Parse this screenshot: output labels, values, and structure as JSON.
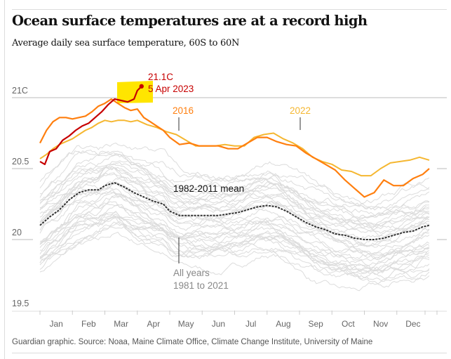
{
  "header": {
    "title": "Ocean surface temperatures are at a record high",
    "subtitle": "Average daily sea surface temperature, 60S to 60N"
  },
  "footer": {
    "source": "Guardian graphic. Source: Noaa, Maine Climate Office, Climate Change Institute, University of Maine"
  },
  "colors": {
    "y2023": "#c70000",
    "y2016": "#ff7f0f",
    "y2022": "#f5b731",
    "all_years": "#dcdcdc",
    "mean": "#333333",
    "highlight": "#ffe500",
    "grid": "#bbbbbb",
    "axis_text": "#666666"
  },
  "chart_data": {
    "type": "line",
    "title": "Ocean surface temperatures are at a record high",
    "subtitle": "Average daily sea surface temperature, 60S to 60N",
    "xlabel": "",
    "ylabel": "",
    "ylim": [
      19.5,
      21.2
    ],
    "yticks": [
      {
        "value": 21,
        "label": "21C"
      },
      {
        "value": 20.5,
        "label": "20.5"
      },
      {
        "value": 20,
        "label": "20"
      },
      {
        "value": 19.5,
        "label": "19.5"
      }
    ],
    "x_unit": "month (1 = Jan 1, 13 = Dec 31)",
    "xlim": [
      1,
      13
    ],
    "categories": [
      "Jan",
      "Feb",
      "Mar",
      "Apr",
      "May",
      "Jun",
      "Jul",
      "Aug",
      "Sep",
      "Oct",
      "Nov",
      "Dec"
    ],
    "grid": "horizontal at labelled ticks",
    "legend": "inline labels",
    "series": [
      {
        "name": "2023",
        "style": "highlight",
        "x": [
          1,
          1.15,
          1.3,
          1.5,
          1.7,
          1.9,
          2.1,
          2.3,
          2.5,
          2.7,
          2.9,
          3.1,
          3.3,
          3.5,
          3.7,
          3.9,
          4.0,
          4.13
        ],
        "values": [
          20.55,
          20.53,
          20.62,
          20.64,
          20.7,
          20.73,
          20.77,
          20.8,
          20.82,
          20.86,
          20.9,
          20.95,
          20.99,
          20.98,
          20.97,
          20.99,
          21.05,
          21.08
        ]
      },
      {
        "name": "2016",
        "style": "accent",
        "x": [
          1,
          1.2,
          1.4,
          1.6,
          1.8,
          2.0,
          2.2,
          2.4,
          2.6,
          2.8,
          3.0,
          3.2,
          3.4,
          3.6,
          3.8,
          4.0,
          4.2,
          4.4,
          4.6,
          4.8,
          5.0,
          5.3,
          5.6,
          5.9,
          6.2,
          6.5,
          6.8,
          7.1,
          7.4,
          7.7,
          8.0,
          8.3,
          8.6,
          8.9,
          9.2,
          9.5,
          9.8,
          10.1,
          10.4,
          10.7,
          11.0,
          11.3,
          11.6,
          11.9,
          12.2,
          12.5,
          12.8,
          13.0
        ],
        "values": [
          20.68,
          20.77,
          20.83,
          20.86,
          20.86,
          20.85,
          20.86,
          20.87,
          20.9,
          20.94,
          20.96,
          20.99,
          20.96,
          20.93,
          20.91,
          20.92,
          20.86,
          20.83,
          20.8,
          20.77,
          20.72,
          20.67,
          20.68,
          20.66,
          20.66,
          20.66,
          20.64,
          20.64,
          20.68,
          20.72,
          20.72,
          20.69,
          20.67,
          20.66,
          20.61,
          20.57,
          20.53,
          20.49,
          20.42,
          20.36,
          20.3,
          20.33,
          20.42,
          20.38,
          20.38,
          20.43,
          20.46,
          20.5
        ]
      },
      {
        "name": "2022",
        "style": "light-accent",
        "x": [
          1,
          1.2,
          1.4,
          1.6,
          1.8,
          2.0,
          2.2,
          2.4,
          2.6,
          2.8,
          3.0,
          3.2,
          3.4,
          3.6,
          3.8,
          4.0,
          4.3,
          4.6,
          4.9,
          5.2,
          5.5,
          5.8,
          6.1,
          6.4,
          6.7,
          7.0,
          7.3,
          7.6,
          7.9,
          8.2,
          8.5,
          8.8,
          9.1,
          9.4,
          9.7,
          10.0,
          10.3,
          10.6,
          10.9,
          11.2,
          11.5,
          11.8,
          12.1,
          12.4,
          12.7,
          13.0
        ],
        "values": [
          20.57,
          20.6,
          20.64,
          20.67,
          20.69,
          20.71,
          20.74,
          20.77,
          20.79,
          20.82,
          20.84,
          20.83,
          20.84,
          20.84,
          20.83,
          20.84,
          20.81,
          20.79,
          20.76,
          20.74,
          20.7,
          20.66,
          20.66,
          20.66,
          20.67,
          20.66,
          20.66,
          20.72,
          20.74,
          20.75,
          20.71,
          20.68,
          20.64,
          20.58,
          20.55,
          20.53,
          20.49,
          20.48,
          20.45,
          20.45,
          20.5,
          20.54,
          20.55,
          20.56,
          20.58,
          20.56
        ]
      },
      {
        "name": "1982-2011 mean",
        "style": "dashed",
        "x": [
          1,
          1.3,
          1.6,
          1.9,
          2.2,
          2.5,
          2.8,
          3.0,
          3.3,
          3.6,
          3.9,
          4.2,
          4.5,
          4.8,
          5.0,
          5.3,
          5.6,
          5.9,
          6.2,
          6.5,
          6.8,
          7.1,
          7.4,
          7.7,
          8.0,
          8.3,
          8.6,
          8.9,
          9.2,
          9.5,
          9.8,
          10.1,
          10.4,
          10.7,
          11.0,
          11.3,
          11.6,
          11.9,
          12.2,
          12.5,
          12.8,
          13.0
        ],
        "values": [
          20.1,
          20.16,
          20.21,
          20.28,
          20.33,
          20.35,
          20.35,
          20.38,
          20.4,
          20.37,
          20.33,
          20.3,
          20.27,
          20.25,
          20.2,
          20.17,
          20.17,
          20.17,
          20.17,
          20.17,
          20.18,
          20.19,
          20.21,
          20.23,
          20.24,
          20.23,
          20.2,
          20.16,
          20.12,
          20.09,
          20.07,
          20.04,
          20.03,
          20.01,
          20.0,
          20.0,
          20.01,
          20.03,
          20.05,
          20.06,
          20.09,
          20.1
        ]
      }
    ],
    "background_series_note": "Gray lines: All years 1981 to 2021",
    "annotations": [
      {
        "text": "21.1C",
        "series": "2023"
      },
      {
        "text": "5 Apr 2023",
        "series": "2023"
      },
      {
        "text": "2016",
        "series": "2016"
      },
      {
        "text": "2022",
        "series": "2022"
      },
      {
        "text": "1982-2011 mean",
        "series": "1982-2011 mean"
      },
      {
        "text": "All years",
        "series": "all"
      },
      {
        "text": "1981 to 2021",
        "series": "all"
      }
    ]
  }
}
